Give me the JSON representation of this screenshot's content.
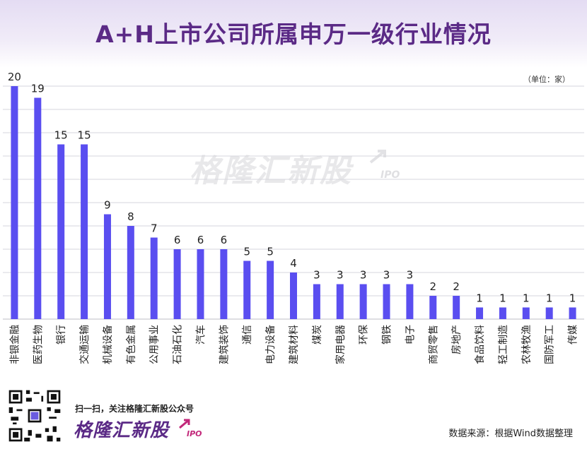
{
  "title": "A+H上市公司所属申万一级行业情况",
  "unit": "（单位：家）",
  "watermark": {
    "text": "格隆汇新股",
    "suffix": "IPO"
  },
  "footer": {
    "slogan": "扫一扫，关注格隆汇新股公众号",
    "brand": "格隆汇新股",
    "brand_suffix": "IPO",
    "source": "数据来源：根据Wind数据整理"
  },
  "colors": {
    "bar": "#5a4ef0",
    "title": "#5b2a86",
    "grid": "#d6d6dc"
  },
  "chart_data": {
    "type": "bar",
    "title": "A+H上市公司所属申万一级行业情况",
    "ylabel": "单位：家",
    "xlabel": "",
    "ylim": [
      0,
      20
    ],
    "grid": true,
    "categories": [
      "非银金融",
      "医药生物",
      "银行",
      "交通运输",
      "机械设备",
      "有色金属",
      "公用事业",
      "石油石化",
      "汽车",
      "建筑装饰",
      "通信",
      "电力设备",
      "建筑材料",
      "煤炭",
      "家用电器",
      "环保",
      "钢铁",
      "电子",
      "商贸零售",
      "房地产",
      "食品饮料",
      "轻工制造",
      "农林牧渔",
      "国防军工",
      "传媒"
    ],
    "values": [
      20,
      19,
      15,
      15,
      9,
      8,
      7,
      6,
      6,
      6,
      5,
      5,
      4,
      3,
      3,
      3,
      3,
      3,
      2,
      2,
      1,
      1,
      1,
      1,
      1
    ]
  }
}
